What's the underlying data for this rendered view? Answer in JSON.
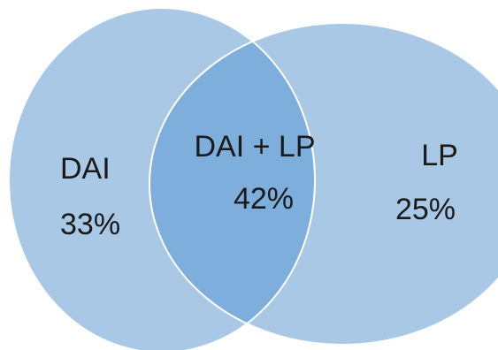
{
  "venn": {
    "colors": {
      "circle_fill": "#a8c8e6",
      "overlap_fill": "#7eaedb",
      "outline": "#ffffff",
      "text": "#1a1a1a"
    },
    "sets": [
      {
        "id": "dai",
        "name": "DAI",
        "value": "33%"
      },
      {
        "id": "lp",
        "name": "LP",
        "value": "25%"
      }
    ],
    "intersection": {
      "name": "DAI + LP",
      "value": "42%"
    }
  }
}
